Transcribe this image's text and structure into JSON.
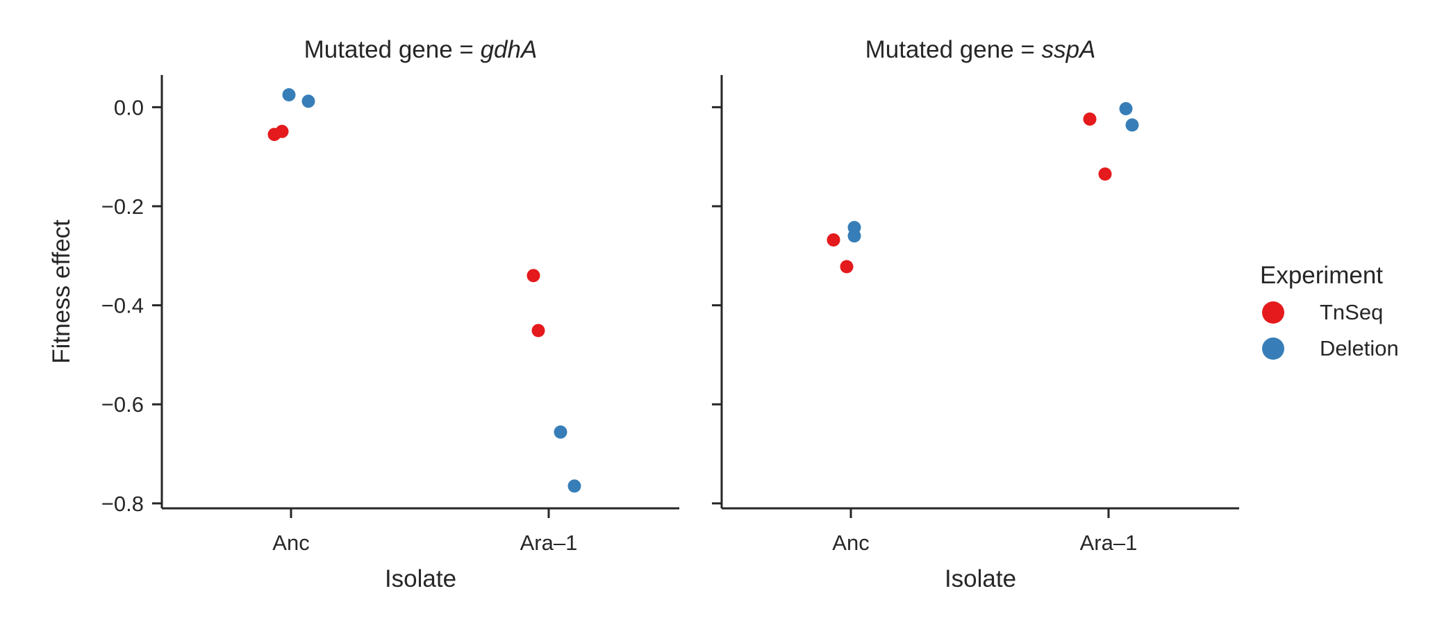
{
  "chart_data": {
    "type": "scatter",
    "layout": "facet-strip",
    "ylabel": "Fitness effect",
    "ylim": [
      -0.81,
      0.065
    ],
    "yticks": [
      0.0,
      -0.2,
      -0.4,
      -0.6,
      -0.8
    ],
    "ytick_labels": [
      "0.0",
      "−0.2",
      "−0.4",
      "−0.6",
      "−0.8"
    ],
    "xlabel": "Isolate",
    "categories": [
      "Anc",
      "Ara–1"
    ],
    "legend": {
      "title": "Experiment",
      "placement": "right",
      "entries": [
        {
          "name": "TnSeq",
          "color": "#e41a1c"
        },
        {
          "name": "Deletion",
          "color": "#377eb8"
        }
      ]
    },
    "panels": [
      {
        "title_prefix": "Mutated gene = ",
        "title_gene": "gdhA",
        "series": [
          {
            "name": "TnSeq",
            "points": [
              {
                "category": "Anc",
                "y": -0.055
              },
              {
                "category": "Anc",
                "y": -0.049
              },
              {
                "category": "Ara–1",
                "y": -0.34
              },
              {
                "category": "Ara–1",
                "y": -0.451
              }
            ]
          },
          {
            "name": "Deletion",
            "points": [
              {
                "category": "Anc",
                "y": 0.025
              },
              {
                "category": "Anc",
                "y": 0.012
              },
              {
                "category": "Ara–1",
                "y": -0.656
              },
              {
                "category": "Ara–1",
                "y": -0.765
              }
            ]
          }
        ]
      },
      {
        "title_prefix": "Mutated gene = ",
        "title_gene": "sspA",
        "series": [
          {
            "name": "TnSeq",
            "points": [
              {
                "category": "Anc",
                "y": -0.268
              },
              {
                "category": "Anc",
                "y": -0.322
              },
              {
                "category": "Ara–1",
                "y": -0.024
              },
              {
                "category": "Ara–1",
                "y": -0.135
              }
            ]
          },
          {
            "name": "Deletion",
            "points": [
              {
                "category": "Anc",
                "y": -0.243
              },
              {
                "category": "Anc",
                "y": -0.26
              },
              {
                "category": "Ara–1",
                "y": -0.003
              },
              {
                "category": "Ara–1",
                "y": -0.036
              }
            ]
          }
        ]
      }
    ]
  }
}
